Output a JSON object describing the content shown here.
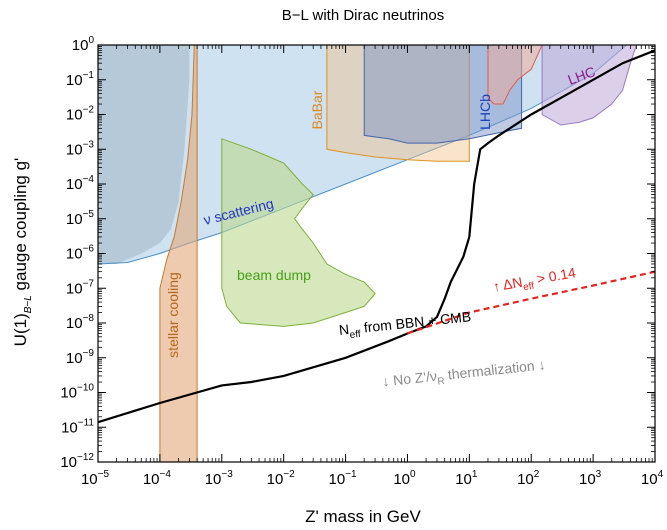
{
  "chart_data": {
    "type": "area",
    "title": "B−L with Dirac neutrinos",
    "xlabel": "Z' mass in GeV",
    "ylabel_main": "U(1)",
    "ylabel_sub": "B−L",
    "ylabel_rest": " gauge coupling g'",
    "xscale": "log",
    "yscale": "log",
    "xlim": [
      1e-05,
      10000.0
    ],
    "ylim": [
      1e-12,
      1
    ],
    "x_tick_exponents": [
      -5,
      -4,
      -3,
      -2,
      -1,
      0,
      1,
      2,
      3,
      4
    ],
    "y_tick_exponents": [
      -12,
      -11,
      -10,
      -9,
      -8,
      -7,
      -6,
      -5,
      -4,
      -3,
      -2,
      -1,
      0
    ],
    "tick_base": "10",
    "grid": false,
    "regions": [
      {
        "name": "gray-bound",
        "color": "#9a9a9a",
        "opacity": 0.5,
        "points": [
          [
            1e-05,
            1
          ],
          [
            1e-05,
            5e-07
          ],
          [
            2e-05,
            5e-07
          ],
          [
            5e-05,
            1e-06
          ],
          [
            0.0001,
            2e-06
          ],
          [
            0.00015,
            5e-06
          ],
          [
            0.0002,
            3e-05
          ],
          [
            0.00025,
            0.001
          ],
          [
            0.0003,
            0.1
          ],
          [
            0.0003,
            1
          ]
        ]
      },
      {
        "name": "nu-scattering",
        "label": "ν scattering",
        "label_color": "#2233cc",
        "color": "#9ec6e3",
        "stroke": "#4a90c8",
        "opacity": 0.5,
        "points": [
          [
            1e-05,
            1
          ],
          [
            1e-05,
            5e-07
          ],
          [
            3e-05,
            5.5e-07
          ],
          [
            0.0001,
            1e-06
          ],
          [
            0.0003,
            2e-06
          ],
          [
            0.001,
            4e-06
          ],
          [
            0.01,
            2e-05
          ],
          [
            0.1,
            0.0001
          ],
          [
            1,
            0.0005
          ],
          [
            10,
            0.0025
          ],
          [
            100,
            0.015
          ],
          [
            1000,
            0.15
          ],
          [
            3000,
            0.8
          ],
          [
            3500,
            1
          ]
        ]
      },
      {
        "name": "stellar-cooling",
        "label": "stellar cooling",
        "label_color": "#b5651d",
        "color": "#e3a87a",
        "stroke": "#c8782e",
        "opacity": 0.6,
        "points": [
          [
            0.0001,
            1e-12
          ],
          [
            0.0001,
            1e-07
          ],
          [
            0.00013,
            7e-07
          ],
          [
            0.00017,
            3e-06
          ],
          [
            0.00022,
            3e-05
          ],
          [
            0.00028,
            0.0005
          ],
          [
            0.00033,
            0.01
          ],
          [
            0.00036,
            1
          ],
          [
            0.0004,
            1
          ],
          [
            0.0004,
            1e-12
          ]
        ]
      },
      {
        "name": "beam-dump",
        "label": "beam dump",
        "label_color": "#44a014",
        "color": "#bcd890",
        "stroke": "#7fb03a",
        "opacity": 0.6,
        "points": [
          [
            0.001,
            0.002
          ],
          [
            0.003,
            0.001
          ],
          [
            0.01,
            0.0004
          ],
          [
            0.02,
            0.0001
          ],
          [
            0.03,
            5e-05
          ],
          [
            0.02,
            2e-05
          ],
          [
            0.015,
            1e-05
          ],
          [
            0.02,
            5e-06
          ],
          [
            0.03,
            2e-06
          ],
          [
            0.05,
            5e-07
          ],
          [
            0.1,
            2.5e-07
          ],
          [
            0.2,
            1.5e-07
          ],
          [
            0.3,
            7e-08
          ],
          [
            0.2,
            3e-08
          ],
          [
            0.1,
            2e-08
          ],
          [
            0.03,
            1e-08
          ],
          [
            0.01,
            8e-09
          ],
          [
            0.002,
            1e-08
          ],
          [
            0.0012,
            3e-08
          ],
          [
            0.001,
            1e-07
          ]
        ]
      },
      {
        "name": "babar",
        "label": "BaBar",
        "label_color": "#e08a1e",
        "color": "#f2c28a",
        "stroke": "#e0931e",
        "opacity": 0.45,
        "points": [
          [
            0.05,
            1
          ],
          [
            0.05,
            0.001
          ],
          [
            0.1,
            0.0008
          ],
          [
            0.3,
            0.0006
          ],
          [
            1,
            0.0005
          ],
          [
            3,
            0.00045
          ],
          [
            10,
            0.00045
          ],
          [
            10,
            1
          ],
          [
            0.05,
            1
          ]
        ]
      },
      {
        "name": "lhcb",
        "label": "LHCb",
        "label_color": "#1a3fbf",
        "color": "#7f96c8",
        "stroke": "#4466aa",
        "opacity": 0.5,
        "points": [
          [
            0.2,
            1
          ],
          [
            0.2,
            0.0025
          ],
          [
            0.5,
            0.002
          ],
          [
            1,
            0.0015
          ],
          [
            3,
            0.0015
          ],
          [
            10,
            0.002
          ],
          [
            30,
            0.003
          ],
          [
            70,
            0.004
          ],
          [
            70,
            1
          ],
          [
            0.2,
            1
          ]
        ]
      },
      {
        "name": "red-bound",
        "color": "#f2a898",
        "stroke": "#e05c4a",
        "opacity": 0.5,
        "points": [
          [
            20,
            1
          ],
          [
            20,
            0.03
          ],
          [
            25,
            0.02
          ],
          [
            35,
            0.02
          ],
          [
            45,
            0.05
          ],
          [
            60,
            0.1
          ],
          [
            100,
            0.2
          ],
          [
            150,
            1
          ]
        ]
      },
      {
        "name": "lhc",
        "label": "LHC",
        "label_color": "#8a1a8a",
        "color": "#c0a8d8",
        "stroke": "#9a7ac0",
        "opacity": 0.55,
        "points": [
          [
            150,
            1
          ],
          [
            150,
            0.01
          ],
          [
            300,
            0.005
          ],
          [
            600,
            0.006
          ],
          [
            1000,
            0.008
          ],
          [
            2000,
            0.02
          ],
          [
            3000,
            0.05
          ],
          [
            4000,
            0.3
          ],
          [
            5000,
            1
          ]
        ]
      }
    ],
    "lines": [
      {
        "name": "N-eff-bound",
        "color": "#000000",
        "dash": "none",
        "points": [
          [
            1e-05,
            1.4e-11
          ],
          [
            0.0001,
            5e-11
          ],
          [
            0.001,
            1.6e-10
          ],
          [
            0.003,
            2e-10
          ],
          [
            0.01,
            3e-10
          ],
          [
            0.1,
            1e-09
          ],
          [
            0.5,
            3e-09
          ],
          [
            1,
            5e-09
          ],
          [
            2,
            8e-09
          ],
          [
            3,
            1.5e-08
          ],
          [
            4,
            5e-08
          ],
          [
            5,
            1.5e-07
          ],
          [
            8,
            8e-07
          ],
          [
            10,
            3e-06
          ],
          [
            12,
            0.0001
          ],
          [
            15,
            0.001
          ],
          [
            20,
            0.0015
          ],
          [
            30,
            0.0025
          ],
          [
            100,
            0.01
          ],
          [
            300,
            0.03
          ],
          [
            1000,
            0.1
          ],
          [
            3000,
            0.3
          ],
          [
            10000,
            0.7
          ]
        ]
      },
      {
        "name": "delta-N-eff-line",
        "color": "#e8231e",
        "dash": "6,4",
        "points": [
          [
            1,
            5e-09
          ],
          [
            10,
            2e-08
          ],
          [
            100,
            5e-08
          ],
          [
            1000,
            1.2e-07
          ],
          [
            10000,
            3e-07
          ]
        ]
      }
    ],
    "annotations": [
      {
        "name": "neff-label",
        "parts": [
          "N",
          "eff",
          " from BBN + CMB"
        ],
        "color": "#000000",
        "x": 0.08,
        "y": 4.5e-09,
        "rotate": -6
      },
      {
        "name": "no-thermal-label",
        "parts": [
          "↓ No Z'/ν",
          "R",
          " thermalization ↓"
        ],
        "color": "#8a8a8a",
        "x": 0.4,
        "y": 1.5e-10,
        "rotate": -6
      },
      {
        "name": "delta-neff-label",
        "parts": [
          "↑ ΔN",
          "eff",
          " > 0.14"
        ],
        "color": "#e8231e",
        "x": 25,
        "y": 8e-08,
        "rotate": -10
      }
    ]
  }
}
